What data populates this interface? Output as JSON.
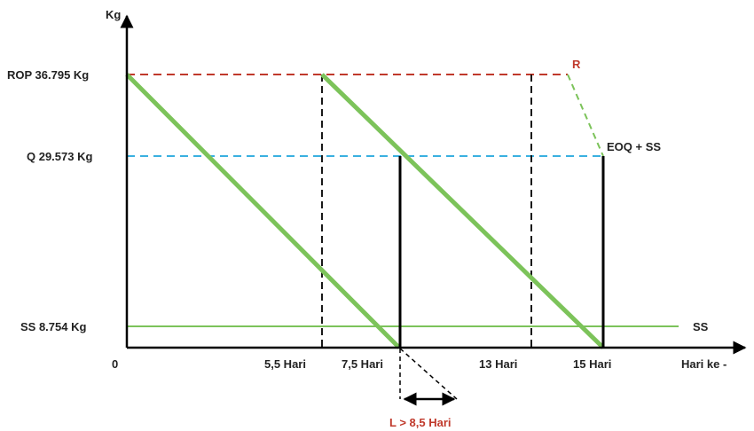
{
  "axes": {
    "y_label": "Kg",
    "x_label": "Hari ke -",
    "origin_label": "0"
  },
  "y_ticks": {
    "rop": "ROP 36.795 Kg",
    "q": "Q 29.573 Kg",
    "ss": "SS 8.754 Kg"
  },
  "x_ticks": {
    "t1": "5,5 Hari",
    "t2": "7,5 Hari",
    "t3": "13 Hari",
    "t4": "15 Hari"
  },
  "annotations": {
    "r": "R",
    "eoq_ss": "EOQ + SS",
    "ss_line": "SS",
    "lead_time": "L > 8,5 Hari"
  },
  "colors": {
    "axis": "#000000",
    "inventory_line": "#7cc35a",
    "ss_line": "#7cc35a",
    "rop_line": "#c0392b",
    "q_line": "#3ab0e0",
    "accent_red": "#d32f2f"
  }
}
